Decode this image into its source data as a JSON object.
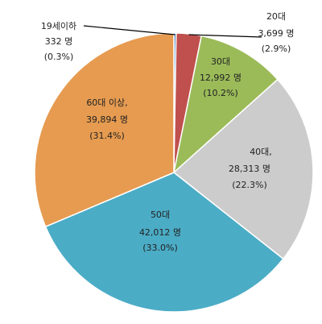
{
  "chart_data": {
    "type": "pie",
    "title": "",
    "slices": [
      {
        "label": "19세이하",
        "count_text": "332 명",
        "percent_text": "(0.3%)",
        "value": 332,
        "color": "#4a7ebb"
      },
      {
        "label": "20대",
        "count_text": "3,699 명",
        "percent_text": "(2.9%)",
        "value": 3699,
        "color": "#c0504d"
      },
      {
        "label": "30대",
        "count_text": "12,992 명",
        "percent_text": "(10.2%)",
        "value": 12992,
        "color": "#9bbb59"
      },
      {
        "label": "40대,",
        "count_text": "28,313 명",
        "percent_text": "(22.3%)",
        "value": 28313,
        "color": "#cccccc"
      },
      {
        "label": "50대",
        "count_text": "42,012 명",
        "percent_text": "(33.0%)",
        "value": 42012,
        "color": "#4bacc6"
      },
      {
        "label": "60대 이상,",
        "count_text": "39,894 명",
        "percent_text": "(31.4%)",
        "value": 39894,
        "color": "#e69b50"
      }
    ]
  }
}
